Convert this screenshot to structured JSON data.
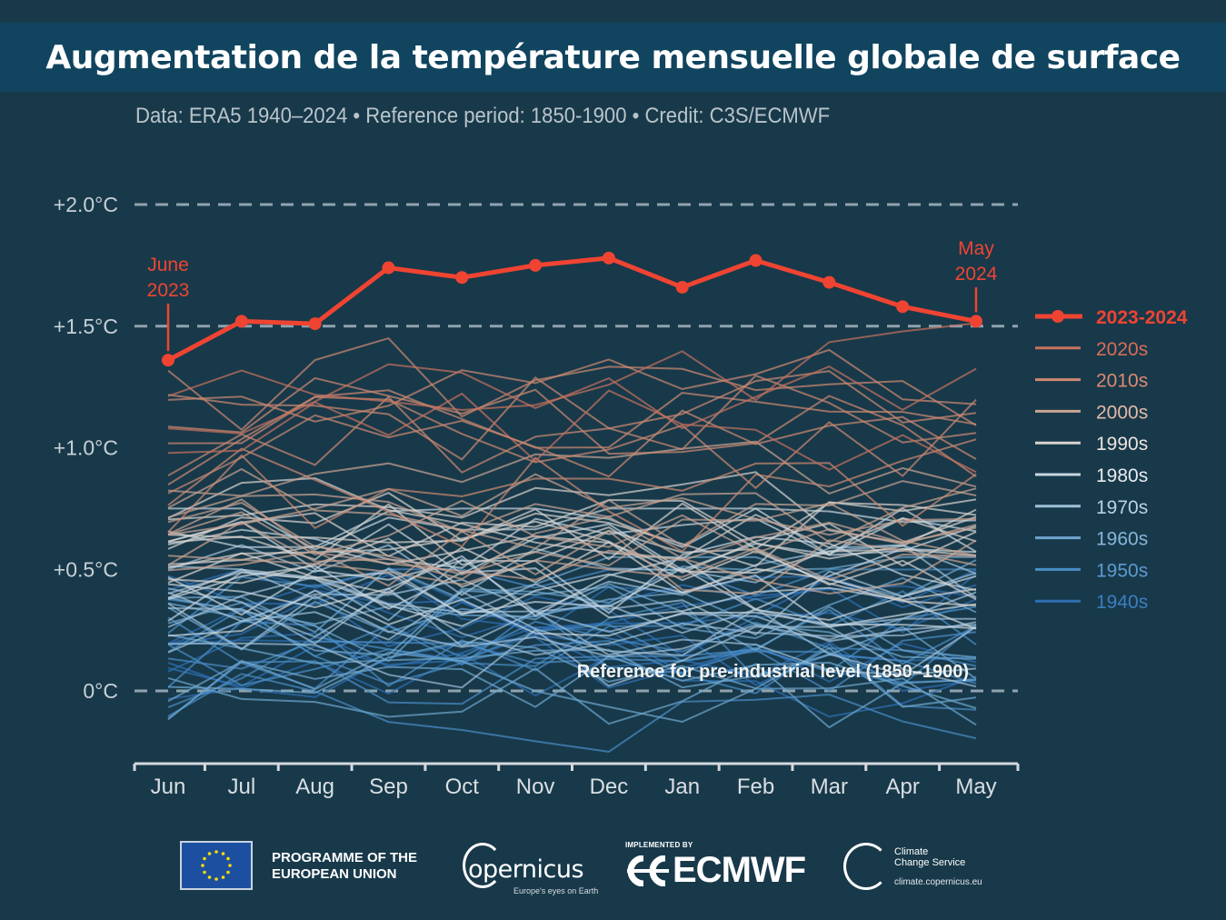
{
  "header": {
    "title": "Augmentation de la température mensuelle globale de surface",
    "subtitle": "Data: ERA5 1940–2024 • Reference period: 1850-1900 • Credit: C3S/ECMWF"
  },
  "chart_data": {
    "type": "line",
    "title": "Augmentation de la température mensuelle globale de surface",
    "subtitle": "Data: ERA5 1940–2024 • Reference period: 1850-1900 • Credit: C3S/ECMWF",
    "xlabel": "",
    "ylabel": "",
    "categories": [
      "Jun",
      "Jul",
      "Aug",
      "Sep",
      "Oct",
      "Nov",
      "Dec",
      "Jan",
      "Feb",
      "Mar",
      "Apr",
      "May"
    ],
    "ylim": [
      -0.3,
      2.0
    ],
    "yticks": [
      {
        "value": 2.0,
        "label": "+2.0°C"
      },
      {
        "value": 1.5,
        "label": "+1.5°C"
      },
      {
        "value": 1.0,
        "label": "+1.0°C"
      },
      {
        "value": 0.5,
        "label": "+0.5°C"
      },
      {
        "value": 0.0,
        "label": "0°C"
      }
    ],
    "dashed_reference_lines": [
      2.0,
      1.5,
      0.0
    ],
    "grid": false,
    "legend_position": "right",
    "highlight_series": {
      "name": "2023-2024",
      "color": "#ef4432",
      "values": [
        1.36,
        1.52,
        1.51,
        1.74,
        1.7,
        1.75,
        1.78,
        1.66,
        1.77,
        1.68,
        1.58,
        1.52
      ]
    },
    "decade_series": [
      {
        "name": "2020s",
        "color": "#c8725e",
        "approx_range": [
          0.95,
          1.65
        ]
      },
      {
        "name": "2010s",
        "color": "#cf8a72",
        "approx_range": [
          0.6,
          1.45
        ]
      },
      {
        "name": "2000s",
        "color": "#c9a493",
        "approx_range": [
          0.45,
          1.05
        ]
      },
      {
        "name": "1990s",
        "color": "#d9d3cf",
        "approx_range": [
          0.3,
          0.9
        ]
      },
      {
        "name": "1980s",
        "color": "#c8d6e0",
        "approx_range": [
          0.15,
          0.75
        ]
      },
      {
        "name": "1970s",
        "color": "#9fc0d8",
        "approx_range": [
          0.0,
          0.6
        ]
      },
      {
        "name": "1960s",
        "color": "#6ea6cf",
        "approx_range": [
          -0.1,
          0.55
        ]
      },
      {
        "name": "1950s",
        "color": "#4a8dc6",
        "approx_range": [
          -0.2,
          0.5
        ]
      },
      {
        "name": "1940s",
        "color": "#2e6fb3",
        "approx_range": [
          -0.1,
          0.5
        ]
      }
    ],
    "annotations": [
      {
        "text": "June 2023",
        "lines": [
          "June",
          "2023"
        ],
        "x": "Jun"
      },
      {
        "text": "May 2024",
        "lines": [
          "May",
          "2024"
        ],
        "x": "May"
      },
      {
        "text": "Reference for pre-industrial level (1850–1900)",
        "y": 0.0
      }
    ]
  },
  "footer": {
    "eu_text_line1": "PROGRAMME OF THE",
    "eu_text_line2": "EUROPEAN UNION",
    "copernicus_word": "opernicus",
    "copernicus_tagline": "Europe's eyes on Earth",
    "ecmwf_implemented": "IMPLEMENTED BY",
    "ecmwf_word": "ECMWF",
    "c3s_name_line1": "Climate",
    "c3s_name_line2": "Change Service",
    "c3s_url": "climate.copernicus.eu"
  },
  "icons": {
    "eu_flag": "eu-flag-icon",
    "copernicus_logo": "copernicus-logo-icon",
    "ecmwf_logo": "ecmwf-logo-icon",
    "c3s_logo": "thermometer-cloud-icon"
  }
}
